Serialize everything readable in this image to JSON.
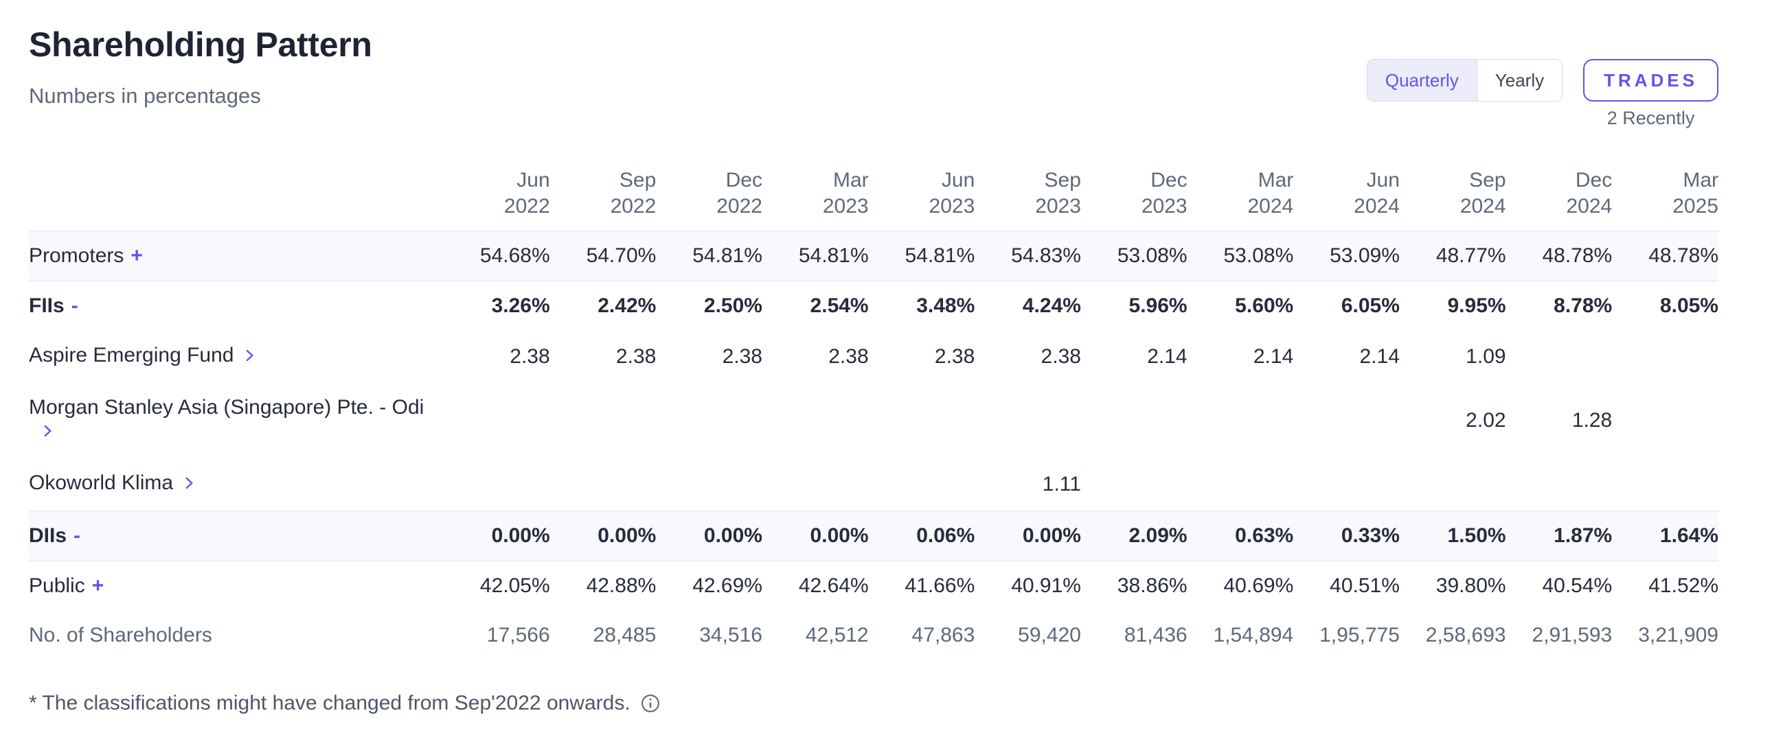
{
  "colors": {
    "accent": "#5e55ef",
    "text_dark": "#1e2433",
    "text_body": "#262c3b",
    "text_muted": "#5d6979",
    "stripe": "#f8f8fd",
    "border": "#e3e7f0"
  },
  "header": {
    "title": "Shareholding Pattern",
    "subtitle": "Numbers in percentages",
    "period_toggle": {
      "options": [
        "Quarterly",
        "Yearly"
      ],
      "selected": "Quarterly"
    },
    "trades_button": "TRADES",
    "trades_caption": "2 Recently"
  },
  "table": {
    "columns": [
      {
        "month": "Jun",
        "year": "2022"
      },
      {
        "month": "Sep",
        "year": "2022"
      },
      {
        "month": "Dec",
        "year": "2022"
      },
      {
        "month": "Mar",
        "year": "2023"
      },
      {
        "month": "Jun",
        "year": "2023"
      },
      {
        "month": "Sep",
        "year": "2023"
      },
      {
        "month": "Dec",
        "year": "2023"
      },
      {
        "month": "Mar",
        "year": "2024"
      },
      {
        "month": "Jun",
        "year": "2024"
      },
      {
        "month": "Sep",
        "year": "2024"
      },
      {
        "month": "Dec",
        "year": "2024"
      },
      {
        "month": "Mar",
        "year": "2025"
      }
    ],
    "rows": [
      {
        "label": "Promoters",
        "toggle": "expand",
        "toggle_glyph": "+",
        "bold": false,
        "striped": true,
        "muted": false,
        "chevron_on_new_line": false,
        "values": [
          "54.68%",
          "54.70%",
          "54.81%",
          "54.81%",
          "54.81%",
          "54.83%",
          "53.08%",
          "53.08%",
          "53.09%",
          "48.77%",
          "48.78%",
          "48.78%"
        ]
      },
      {
        "label": "FIIs",
        "toggle": "collapse",
        "toggle_glyph": "-",
        "bold": true,
        "striped": false,
        "muted": false,
        "chevron_on_new_line": false,
        "values": [
          "3.26%",
          "2.42%",
          "2.50%",
          "2.54%",
          "3.48%",
          "4.24%",
          "5.96%",
          "5.60%",
          "6.05%",
          "9.95%",
          "8.78%",
          "8.05%"
        ]
      },
      {
        "label": "Aspire Emerging Fund",
        "toggle": "chevron",
        "toggle_glyph": "",
        "bold": false,
        "striped": false,
        "muted": false,
        "chevron_on_new_line": false,
        "values": [
          "2.38",
          "2.38",
          "2.38",
          "2.38",
          "2.38",
          "2.38",
          "2.14",
          "2.14",
          "2.14",
          "1.09",
          "",
          ""
        ]
      },
      {
        "label": "Morgan Stanley Asia (Singapore) Pte. - Odi",
        "toggle": "chevron",
        "toggle_glyph": "",
        "bold": false,
        "striped": false,
        "muted": false,
        "chevron_on_new_line": true,
        "values": [
          "",
          "",
          "",
          "",
          "",
          "",
          "",
          "",
          "",
          "2.02",
          "1.28",
          ""
        ]
      },
      {
        "label": "Okoworld Klima",
        "toggle": "chevron",
        "toggle_glyph": "",
        "bold": false,
        "striped": false,
        "muted": false,
        "chevron_on_new_line": false,
        "values": [
          "",
          "",
          "",
          "",
          "",
          "1.11",
          "",
          "",
          "",
          "",
          "",
          ""
        ]
      },
      {
        "label": "DIIs",
        "toggle": "collapse",
        "toggle_glyph": "-",
        "bold": true,
        "striped": true,
        "muted": false,
        "chevron_on_new_line": false,
        "values": [
          "0.00%",
          "0.00%",
          "0.00%",
          "0.00%",
          "0.06%",
          "0.00%",
          "2.09%",
          "0.63%",
          "0.33%",
          "1.50%",
          "1.87%",
          "1.64%"
        ]
      },
      {
        "label": "Public",
        "toggle": "expand",
        "toggle_glyph": "+",
        "bold": false,
        "striped": false,
        "muted": false,
        "chevron_on_new_line": false,
        "values": [
          "42.05%",
          "42.88%",
          "42.69%",
          "42.64%",
          "41.66%",
          "40.91%",
          "38.86%",
          "40.69%",
          "40.51%",
          "39.80%",
          "40.54%",
          "41.52%"
        ]
      },
      {
        "label": "No. of Shareholders",
        "toggle": null,
        "toggle_glyph": "",
        "bold": false,
        "striped": false,
        "muted": true,
        "chevron_on_new_line": false,
        "values": [
          "17,566",
          "28,485",
          "34,516",
          "42,512",
          "47,863",
          "59,420",
          "81,436",
          "1,54,894",
          "1,95,775",
          "2,58,693",
          "2,91,593",
          "3,21,909"
        ]
      }
    ]
  },
  "footnote": {
    "text": "* The classifications might have changed from Sep'2022 onwards."
  }
}
